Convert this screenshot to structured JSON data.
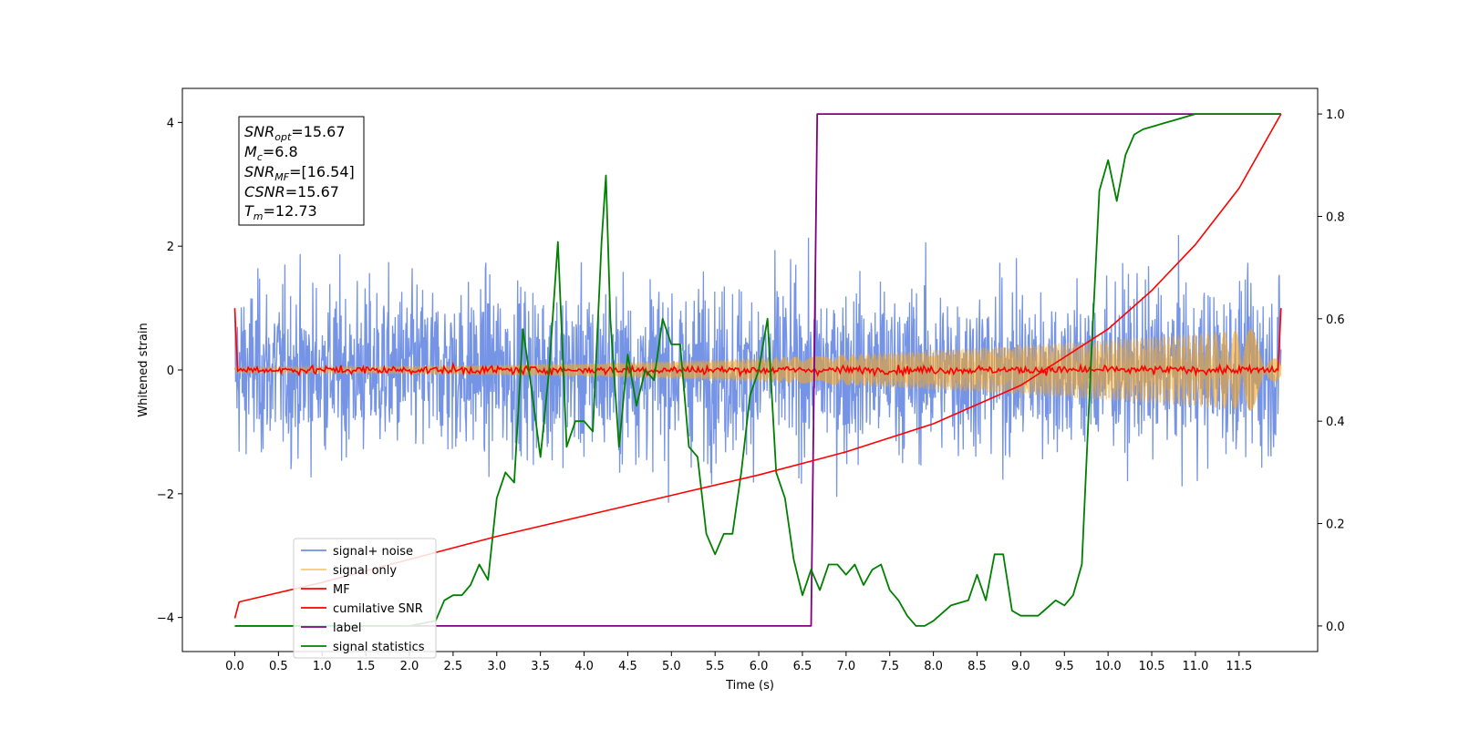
{
  "chart_data": {
    "type": "line",
    "xlabel": "Time (s)",
    "ylabel": "Whitened strain",
    "xlim": [
      -0.6,
      12.4
    ],
    "ylim": [
      -4.55,
      4.55
    ],
    "y2lim": [
      -0.05,
      1.05
    ],
    "xticks": [
      "0.0",
      "0.5",
      "1.0",
      "1.5",
      "2.0",
      "2.5",
      "3.0",
      "3.5",
      "4.0",
      "4.5",
      "5.0",
      "5.5",
      "6.0",
      "6.5",
      "7.0",
      "7.5",
      "8.0",
      "8.5",
      "9.0",
      "9.5",
      "10.0",
      "10.5",
      "11.0",
      "11.5"
    ],
    "yticks": [
      "4",
      "2",
      "0",
      "−2",
      "−4"
    ],
    "y2ticks": [
      "1.0",
      "0.8",
      "0.6",
      "0.4",
      "0.2",
      "0.0"
    ],
    "legend_position": "lower-left",
    "info_box": {
      "snr_opt": "=15.67",
      "mc": "=6.8",
      "snr_mf": "=[16.54]",
      "csnr": "=15.67",
      "tm": "=12.73"
    },
    "series": [
      {
        "name": "signal+ noise",
        "color": "#6f8ee5",
        "axis": "left",
        "description_values": "noise band",
        "band_amplitude": [
          1.6,
          3.5
        ],
        "x_range": [
          0.0,
          11.98
        ]
      },
      {
        "name": "signal only",
        "color": "#f5a623",
        "axis": "left",
        "amplitude_start": 0.05,
        "amplitude_end": 0.7,
        "x_range": [
          0.0,
          11.98
        ]
      },
      {
        "name": "MF",
        "color": "#ff0000",
        "axis": "left",
        "x_range": [
          0.0,
          11.98
        ],
        "edge_value": 1.0
      },
      {
        "name": "cumilative SNR",
        "color": "#ff0000",
        "axis": "right",
        "x": [
          0.0,
          0.05,
          1.0,
          2.0,
          3.0,
          4.0,
          5.0,
          6.0,
          7.0,
          8.0,
          9.0,
          10.0,
          10.5,
          11.0,
          11.5,
          11.98
        ],
        "values": [
          0.015,
          0.047,
          0.085,
          0.13,
          0.175,
          0.215,
          0.255,
          0.295,
          0.34,
          0.395,
          0.47,
          0.58,
          0.655,
          0.745,
          0.855,
          1.0
        ]
      },
      {
        "name": "label",
        "color": "#800080",
        "axis": "right",
        "x": [
          0.0,
          6.6,
          6.67,
          11.98
        ],
        "values": [
          0.0,
          0.0,
          1.0,
          1.0
        ]
      },
      {
        "name": "signal statistics",
        "color": "#008000",
        "axis": "right",
        "x": [
          0.0,
          0.5,
          1.0,
          1.5,
          2.0,
          2.3,
          2.4,
          2.5,
          2.6,
          2.7,
          2.8,
          2.9,
          3.0,
          3.1,
          3.2,
          3.3,
          3.4,
          3.5,
          3.6,
          3.7,
          3.8,
          3.9,
          4.0,
          4.1,
          4.2,
          4.25,
          4.3,
          4.4,
          4.5,
          4.6,
          4.7,
          4.8,
          4.9,
          5.0,
          5.1,
          5.2,
          5.3,
          5.4,
          5.5,
          5.6,
          5.7,
          5.8,
          5.9,
          6.0,
          6.1,
          6.2,
          6.3,
          6.4,
          6.5,
          6.6,
          6.7,
          6.8,
          6.9,
          7.0,
          7.1,
          7.2,
          7.3,
          7.4,
          7.5,
          7.6,
          7.7,
          7.8,
          7.9,
          8.0,
          8.2,
          8.4,
          8.5,
          8.6,
          8.7,
          8.8,
          8.9,
          9.0,
          9.2,
          9.4,
          9.5,
          9.6,
          9.7,
          9.8,
          9.9,
          10.0,
          10.1,
          10.2,
          10.3,
          10.4,
          10.6,
          10.8,
          11.0,
          11.3,
          11.98
        ],
        "values": [
          0.0,
          0.0,
          0.0,
          0.0,
          0.0,
          0.01,
          0.05,
          0.06,
          0.06,
          0.08,
          0.12,
          0.09,
          0.25,
          0.3,
          0.28,
          0.58,
          0.46,
          0.33,
          0.5,
          0.75,
          0.35,
          0.4,
          0.4,
          0.38,
          0.75,
          0.88,
          0.6,
          0.35,
          0.53,
          0.43,
          0.5,
          0.48,
          0.6,
          0.55,
          0.55,
          0.35,
          0.33,
          0.18,
          0.14,
          0.18,
          0.18,
          0.3,
          0.45,
          0.5,
          0.6,
          0.3,
          0.25,
          0.13,
          0.06,
          0.11,
          0.07,
          0.12,
          0.12,
          0.1,
          0.12,
          0.08,
          0.11,
          0.12,
          0.07,
          0.05,
          0.02,
          0.0,
          0.0,
          0.01,
          0.04,
          0.05,
          0.1,
          0.05,
          0.14,
          0.14,
          0.03,
          0.02,
          0.02,
          0.05,
          0.04,
          0.06,
          0.12,
          0.5,
          0.85,
          0.91,
          0.83,
          0.92,
          0.96,
          0.97,
          0.98,
          0.99,
          1.0,
          1.0,
          1.0
        ]
      }
    ]
  }
}
